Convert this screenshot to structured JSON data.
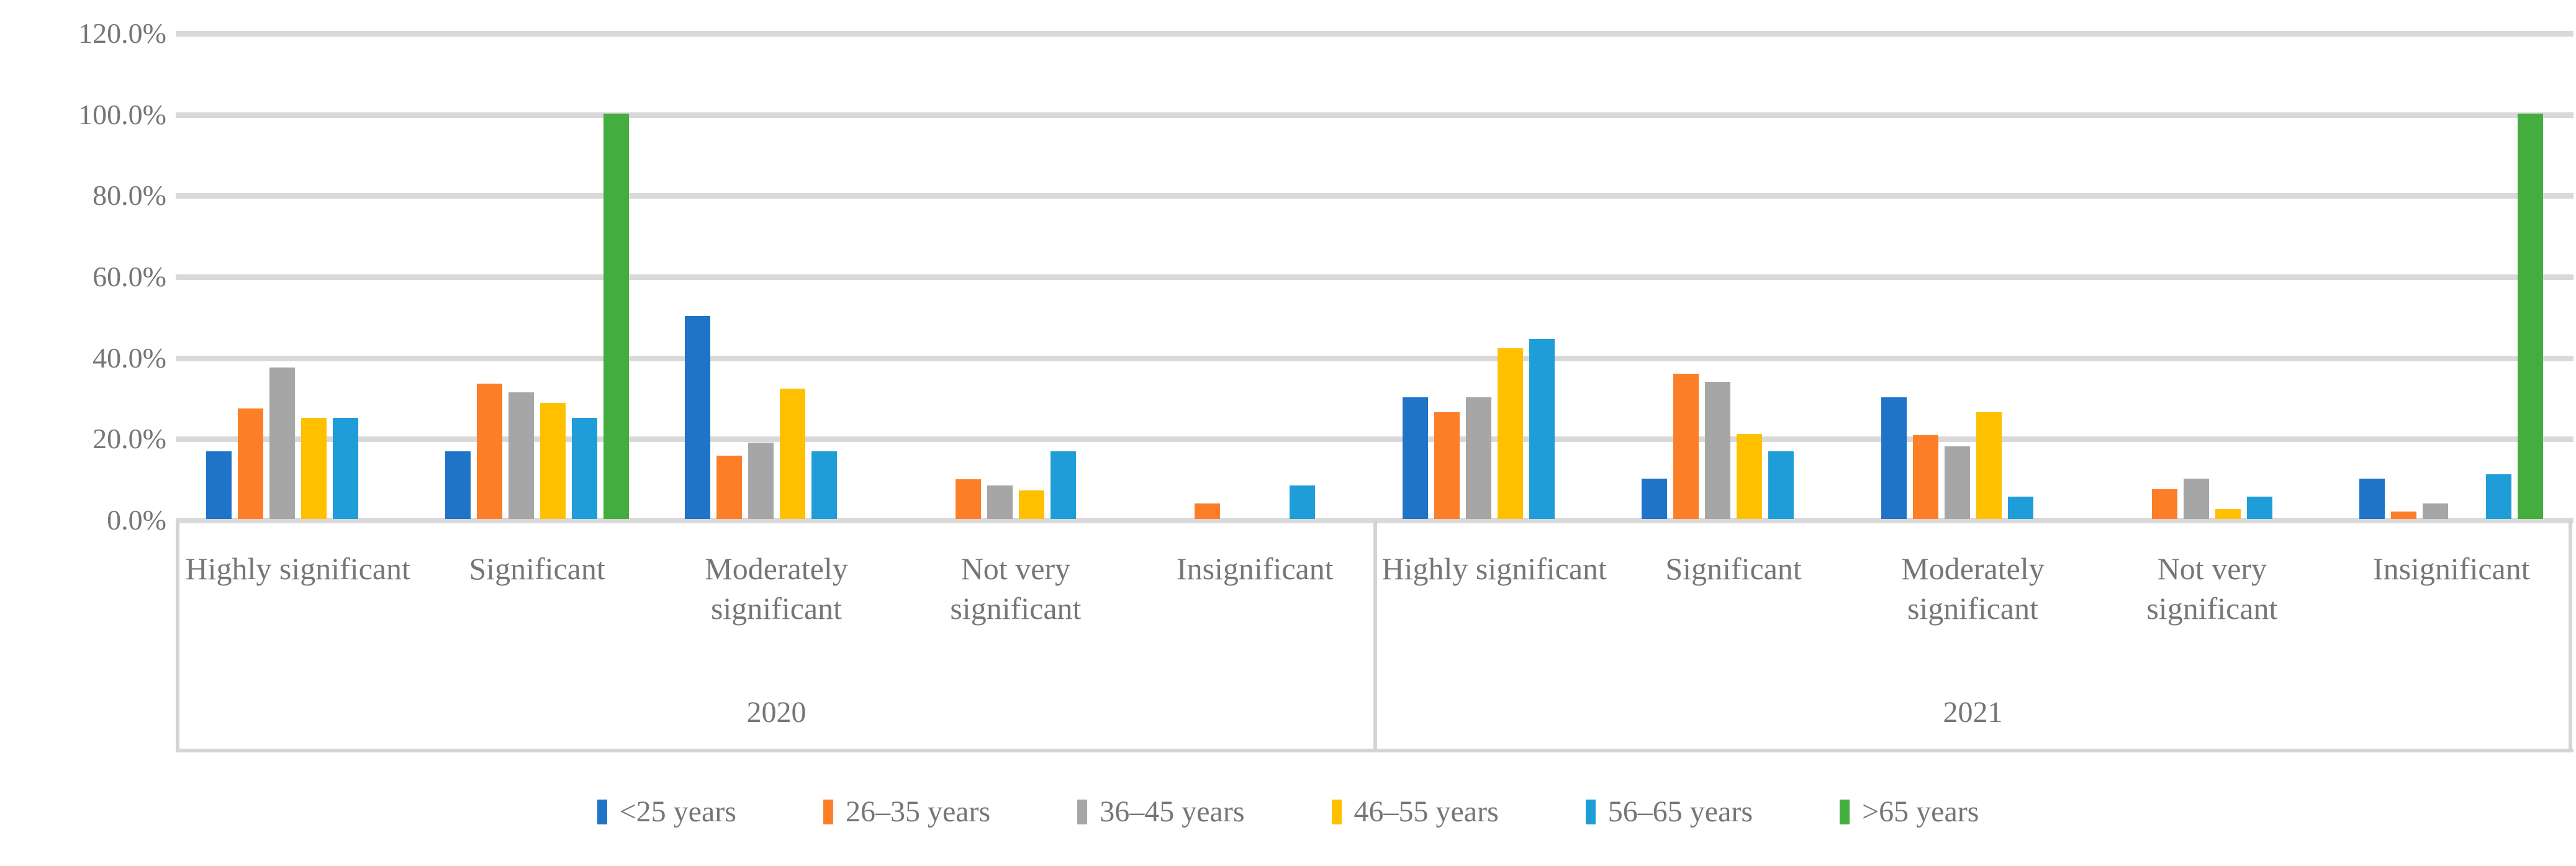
{
  "chart_data": {
    "type": "bar",
    "title": "",
    "grid": "horizontal",
    "legend_position": "bottom",
    "y_axis": {
      "min": 0,
      "max": 120,
      "step": 20,
      "unit": "%",
      "tick_labels": [
        "0.0%",
        "20.0%",
        "40.0%",
        "60.0%",
        "80.0%",
        "100.0%",
        "120.0%"
      ]
    },
    "categories": [
      "Highly significant",
      "Significant",
      "Moderately significant",
      "Not very significant",
      "Insignificant"
    ],
    "year_groups": [
      "2020",
      "2021"
    ],
    "series": [
      {
        "name": "<25 years",
        "color": "#1F74C8",
        "values": {
          "2020": [
            16.7,
            16.7,
            50.0,
            0,
            0
          ],
          "2021": [
            30.0,
            10.0,
            30.0,
            0,
            10.0
          ]
        }
      },
      {
        "name": "26–35 years",
        "color": "#FC7E27",
        "values": {
          "2020": [
            27.3,
            33.3,
            15.6,
            9.8,
            3.8
          ],
          "2021": [
            26.3,
            35.8,
            20.7,
            7.4,
            1.9
          ]
        }
      },
      {
        "name": "36–45 years",
        "color": "#A6A6A6",
        "values": {
          "2020": [
            37.4,
            31.3,
            18.8,
            8.3,
            0
          ],
          "2021": [
            30.0,
            33.8,
            17.9,
            9.9,
            3.8
          ]
        }
      },
      {
        "name": "46–55 years",
        "color": "#FFC000",
        "values": {
          "2020": [
            25.0,
            28.6,
            32.1,
            7.1,
            0
          ],
          "2021": [
            42.1,
            21.0,
            26.3,
            2.5,
            0
          ]
        }
      },
      {
        "name": "56–65 years",
        "color": "#1F9DD9",
        "values": {
          "2020": [
            25.0,
            25.0,
            16.7,
            16.7,
            8.3
          ],
          "2021": [
            44.4,
            16.7,
            5.5,
            5.5,
            11.0
          ]
        }
      },
      {
        "name": ">65 years",
        "color": "#43AD3F",
        "values": {
          "2020": [
            0,
            100.0,
            0,
            0,
            0
          ],
          "2021": [
            0,
            0,
            0,
            0,
            100.0
          ]
        }
      }
    ],
    "colors": {
      "gridline": "#d9d9d9",
      "axis_border": "#d4d4d4",
      "text": "#767676",
      "background": "#ffffff"
    }
  }
}
